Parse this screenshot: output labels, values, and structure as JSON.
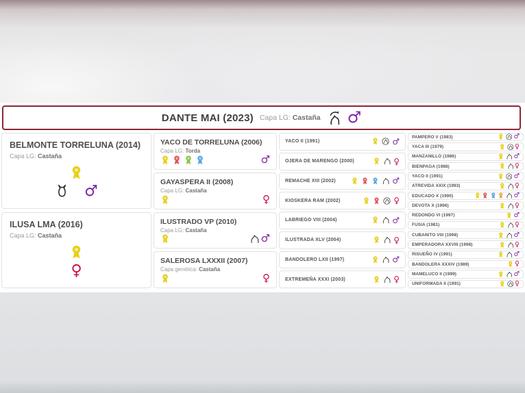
{
  "header": {
    "title": "DANTE MAI (2023)",
    "capa_label": "Capa LG:",
    "capa_value": "Castaña",
    "horse_icon": "arrow",
    "sex": "male"
  },
  "parents": [
    {
      "name": "BELMONTE TORRELUNA (2014)",
      "capa_label": "Capa LG:",
      "capa_value": "Castaña",
      "rosettes": [
        "yellow"
      ],
      "horse_icon": "front",
      "sex": "male"
    },
    {
      "name": "ILUSA LMA (2016)",
      "capa_label": "Capa LG:",
      "capa_value": "Castaña",
      "rosettes": [
        "yellow"
      ],
      "horse_icon": null,
      "sex": "female"
    }
  ],
  "grandparents": [
    {
      "name": "YACO DE TORRELUNA (2006)",
      "capa_label": "Capa LG:",
      "capa_value": "Torda",
      "rosettes": [
        "yellow",
        "red",
        "green",
        "blue"
      ],
      "horse_icon": null,
      "sex": "male"
    },
    {
      "name": "GAYASPERA II (2008)",
      "capa_label": "Capa LG:",
      "capa_value": "Castaña",
      "rosettes": [
        "yellow"
      ],
      "horse_icon": null,
      "sex": "female"
    },
    {
      "name": "ILUSTRADO VP (2010)",
      "capa_label": "Capa LG:",
      "capa_value": "Castaña",
      "rosettes": [
        "yellow"
      ],
      "horse_icon": "plain",
      "sex": "male"
    },
    {
      "name": "SALEROSA LXXXII (2007)",
      "capa_label": "Capa genética:",
      "capa_value": "Castaña",
      "rosettes": [
        "yellow"
      ],
      "horse_icon": null,
      "sex": "female"
    }
  ],
  "great_grandparents": [
    {
      "name": "YACO II (1991)",
      "rosettes": [
        "yellow"
      ],
      "horse_icon": "circle",
      "sex": "male"
    },
    {
      "name": "OJERA DE MARENGO (2000)",
      "rosettes": [
        "yellow"
      ],
      "horse_icon": "plain",
      "sex": "female"
    },
    {
      "name": "REMACHE XIII (2002)",
      "rosettes": [
        "yellow",
        "red",
        "blue"
      ],
      "horse_icon": "plain",
      "sex": "male"
    },
    {
      "name": "KIOSKERA RAM (2002)",
      "rosettes": [
        "yellow",
        "red"
      ],
      "horse_icon": "circle",
      "sex": "female"
    },
    {
      "name": "LABRIEGO VIII (2004)",
      "rosettes": [
        "yellow"
      ],
      "horse_icon": "plain",
      "sex": "male"
    },
    {
      "name": "ILUSTRADA XLV (2004)",
      "rosettes": [
        "yellow"
      ],
      "horse_icon": "plain",
      "sex": "female"
    },
    {
      "name": "BANDOLERO LXII (1997)",
      "rosettes": [
        "yellow"
      ],
      "horse_icon": "plain",
      "sex": "male"
    },
    {
      "name": "EXTREMEÑA XXXI (2003)",
      "rosettes": [
        "yellow"
      ],
      "horse_icon": "plain",
      "sex": "female"
    }
  ],
  "gg_grandparents": [
    {
      "name": "PAMPERO V (1983)",
      "rosettes": [
        "yellow"
      ],
      "horse_icon": "circle",
      "sex": "male"
    },
    {
      "name": "YACA III (1979)",
      "rosettes": [
        "yellow"
      ],
      "horse_icon": "circle",
      "sex": "female"
    },
    {
      "name": "MANZANILLO (1986)",
      "rosettes": [
        "yellow"
      ],
      "horse_icon": "plain",
      "sex": "male"
    },
    {
      "name": "BIENPAGA (1988)",
      "rosettes": [
        "yellow"
      ],
      "horse_icon": "plain",
      "sex": "female"
    },
    {
      "name": "YACO II (1991)",
      "rosettes": [
        "yellow"
      ],
      "horse_icon": "circle",
      "sex": "male"
    },
    {
      "name": "ATREVIDA XXIX (1993)",
      "rosettes": [
        "yellow"
      ],
      "horse_icon": "plain",
      "sex": "female"
    },
    {
      "name": "EDUCADO X (1990)",
      "rosettes": [
        "yellow",
        "red",
        "blue",
        "orange"
      ],
      "horse_icon": "plain",
      "sex": "male"
    },
    {
      "name": "DEVOTA X (1996)",
      "rosettes": [
        "yellow"
      ],
      "horse_icon": "plain",
      "sex": "female"
    },
    {
      "name": "REDONDO VI (1997)",
      "rosettes": [
        "yellow"
      ],
      "horse_icon": null,
      "sex": "male"
    },
    {
      "name": "FUSIA (1981)",
      "rosettes": [
        "yellow"
      ],
      "horse_icon": "plain",
      "sex": "female"
    },
    {
      "name": "CUBANITO VIII (1998)",
      "rosettes": [
        "yellow"
      ],
      "horse_icon": "plain",
      "sex": "male"
    },
    {
      "name": "EMPERADORA XXVIII (1998)",
      "rosettes": [
        "yellow"
      ],
      "horse_icon": "plain",
      "sex": "female"
    },
    {
      "name": "RISUEÑO IV (1991)",
      "rosettes": [
        "yellow"
      ],
      "horse_icon": "plain",
      "sex": "male"
    },
    {
      "name": "BANDOLERA XXXIV (1989)",
      "rosettes": [
        "yellow"
      ],
      "horse_icon": null,
      "sex": "female"
    },
    {
      "name": "MAMELUCO II (1999)",
      "rosettes": [
        "yellow"
      ],
      "horse_icon": "plain",
      "sex": "male"
    },
    {
      "name": "UNIFORMADA II (1991)",
      "rosettes": [
        "yellow"
      ],
      "horse_icon": "circle",
      "sex": "female"
    }
  ],
  "colors": {
    "accent": "#8b2738",
    "male": "#7d22a8",
    "female": "#cb0f4d",
    "yellow": "#e7cf1a",
    "red": "#e35555",
    "green": "#8bc34a",
    "blue": "#53a6e6",
    "orange": "#efa03c"
  }
}
